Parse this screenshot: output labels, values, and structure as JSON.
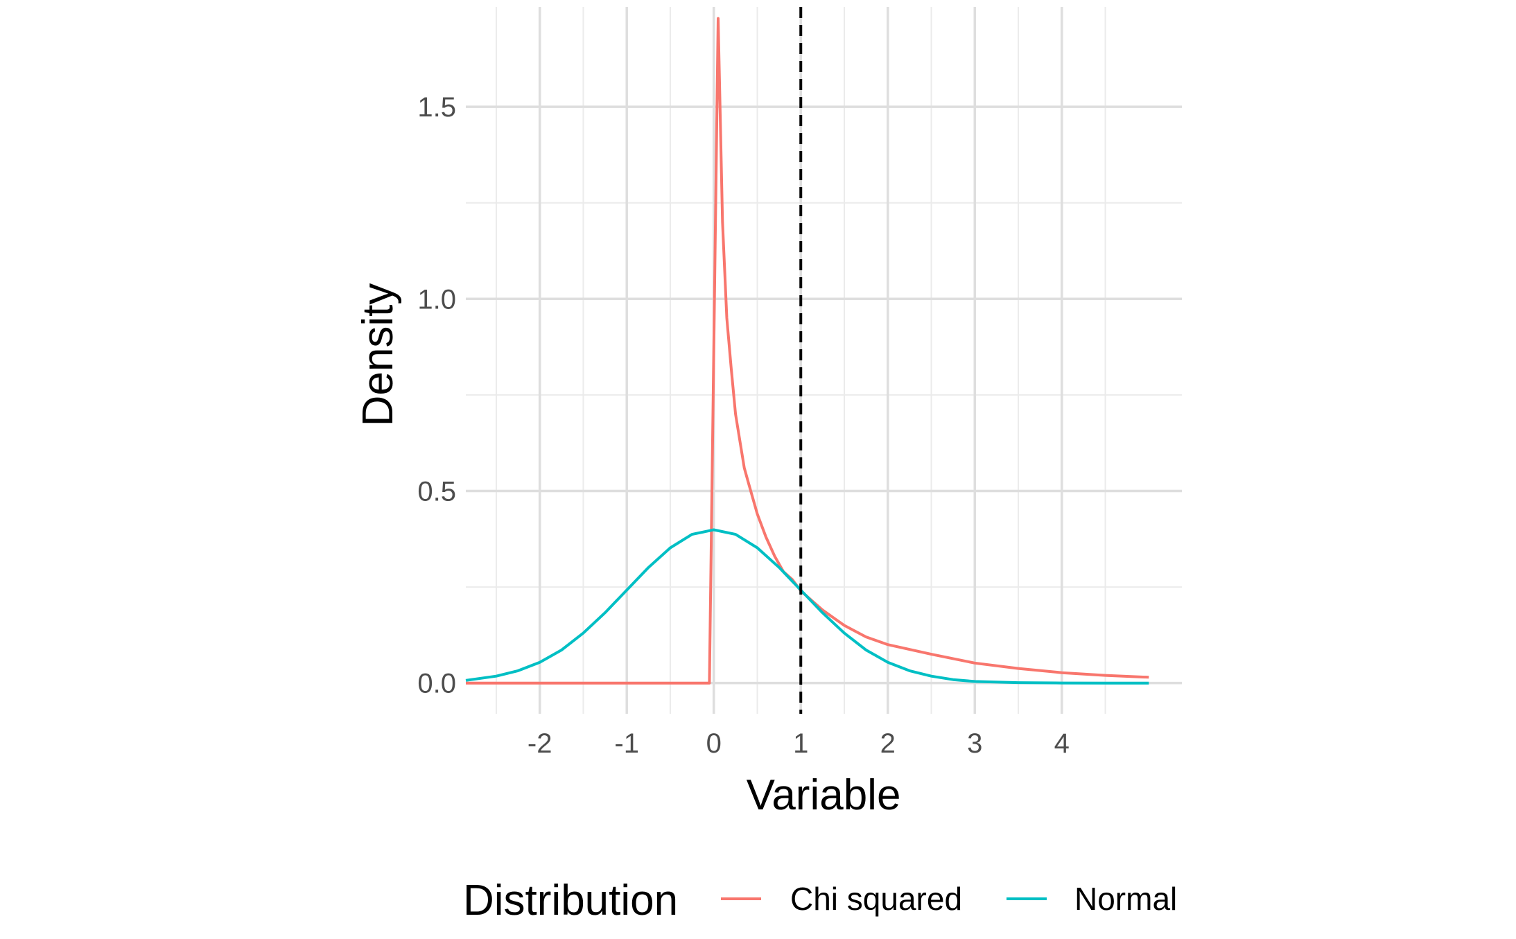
{
  "chart_data": {
    "type": "line",
    "title": "",
    "xlabel": "Variable",
    "ylabel": "Density",
    "xlim": [
      -2.85,
      5.38
    ],
    "ylim": [
      -0.08,
      1.76
    ],
    "x_ticks": [
      -2,
      -1,
      0,
      1,
      2,
      3,
      4
    ],
    "x_tick_labels": [
      "-2",
      "-1",
      "0",
      "1",
      "2",
      "3",
      "4"
    ],
    "y_ticks": [
      0,
      0.5,
      1,
      1.5
    ],
    "y_tick_labels": [
      "0.0",
      "0.5",
      "1.0",
      "1.5"
    ],
    "y_minor_grid": [
      0.25,
      0.75,
      1.25
    ],
    "x_minor_grid": [
      -2.5,
      -1.5,
      -0.5,
      0.5,
      1.5,
      2.5,
      3.5,
      4.5
    ],
    "grid": true,
    "legend": {
      "title": "Distribution",
      "position": "bottom"
    },
    "vline": {
      "x": 1,
      "style": "dashed",
      "color": "#000000"
    },
    "series": [
      {
        "name": "Chi squared",
        "color": "#F8766D",
        "x": [
          -2.85,
          -0.05,
          0.05,
          0.1,
          0.15,
          0.2,
          0.25,
          0.3,
          0.35,
          0.4,
          0.45,
          0.5,
          0.6,
          0.7,
          0.8,
          0.9,
          1.0,
          1.1,
          1.25,
          1.5,
          1.75,
          2.0,
          2.5,
          3.0,
          3.5,
          4.0,
          4.5,
          5.0
        ],
        "values": [
          0,
          0,
          1.73,
          1.2,
          0.95,
          0.82,
          0.7,
          0.63,
          0.56,
          0.52,
          0.48,
          0.44,
          0.38,
          0.33,
          0.29,
          0.27,
          0.24,
          0.22,
          0.19,
          0.15,
          0.12,
          0.1,
          0.075,
          0.052,
          0.038,
          0.027,
          0.02,
          0.015
        ]
      },
      {
        "name": "Normal",
        "color": "#00BFC4",
        "x": [
          -2.85,
          -2.5,
          -2.25,
          -2.0,
          -1.75,
          -1.5,
          -1.25,
          -1.0,
          -0.75,
          -0.5,
          -0.25,
          0.0,
          0.25,
          0.5,
          0.75,
          1.0,
          1.25,
          1.5,
          1.75,
          2.0,
          2.25,
          2.5,
          2.75,
          3.0,
          3.5,
          4.0,
          4.5,
          5.0
        ],
        "values": [
          0.007,
          0.018,
          0.032,
          0.054,
          0.086,
          0.13,
          0.183,
          0.242,
          0.301,
          0.352,
          0.387,
          0.399,
          0.387,
          0.352,
          0.301,
          0.242,
          0.183,
          0.13,
          0.086,
          0.054,
          0.032,
          0.018,
          0.009,
          0.004,
          0.001,
          0.0001,
          0.0,
          0.0
        ]
      }
    ]
  }
}
